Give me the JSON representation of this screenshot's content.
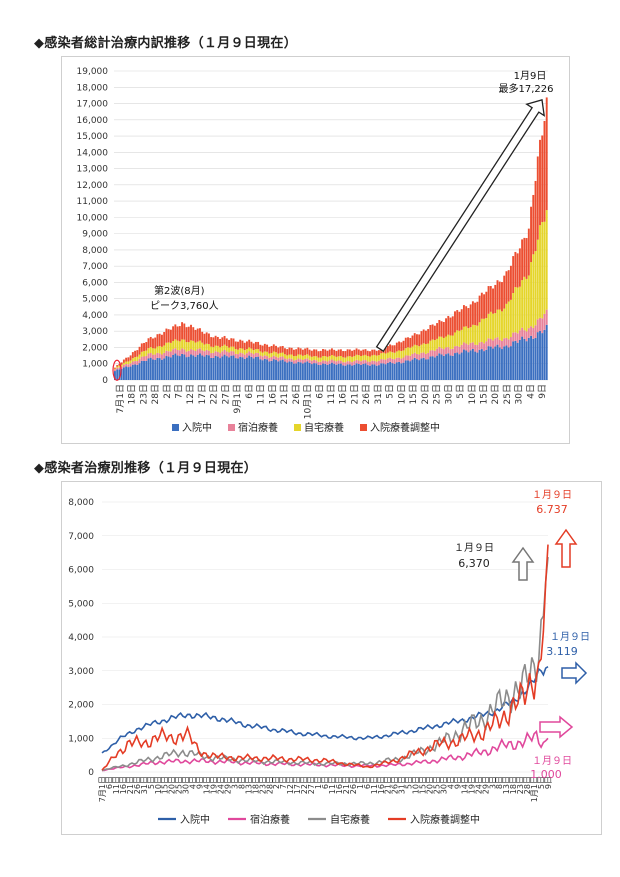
{
  "charts": [
    {
      "title": "◆感染者総計治療内訳推移（１月９日現在）",
      "chart_data": {
        "type": "bar",
        "stacked": true,
        "ylim": [
          0,
          19000
        ],
        "yticks": [
          "0",
          "1,000",
          "2,000",
          "3,000",
          "4,000",
          "5,000",
          "6,000",
          "7,000",
          "8,000",
          "9,000",
          "10,000",
          "11,000",
          "12,000",
          "13,000",
          "14,000",
          "15,000",
          "16,000",
          "17,000",
          "18,000",
          "19,000"
        ],
        "x_start": "7月1日",
        "x_end": "1月9日",
        "xtick_labels": [
          "7月1日",
          "18日",
          "23日",
          "28日",
          "2日",
          "7日",
          "12日",
          "17日",
          "22日",
          "27日",
          "9月1日",
          "6日",
          "11日",
          "16日",
          "21日",
          "26日",
          "10月1日",
          "6日",
          "11日",
          "16日",
          "21日",
          "26日",
          "31日",
          "5日",
          "10日",
          "15日",
          "20日",
          "25日",
          "30日",
          "5日",
          "10日",
          "15日",
          "20日",
          "25日",
          "30日",
          "4日",
          "9日"
        ],
        "series": [
          {
            "name": "入院中",
            "color": "#3b6fc0",
            "keyframes": [
              [
                0,
                550
              ],
              [
                15,
                1250
              ],
              [
                30,
                1550
              ],
              [
                45,
                1450
              ],
              [
                60,
                1400
              ],
              [
                75,
                1150
              ],
              [
                90,
                1000
              ],
              [
                105,
                950
              ],
              [
                118,
                950
              ],
              [
                130,
                1150
              ],
              [
                145,
                1500
              ],
              [
                160,
                1800
              ],
              [
                175,
                2100
              ],
              [
                185,
                2600
              ],
              [
                193,
                3100
              ]
            ]
          },
          {
            "name": "宿泊療養",
            "color": "#e8829a",
            "keyframes": [
              [
                0,
                100
              ],
              [
                15,
                300
              ],
              [
                30,
                350
              ],
              [
                45,
                300
              ],
              [
                60,
                250
              ],
              [
                75,
                200
              ],
              [
                90,
                200
              ],
              [
                105,
                200
              ],
              [
                118,
                250
              ],
              [
                130,
                300
              ],
              [
                145,
                400
              ],
              [
                160,
                450
              ],
              [
                175,
                500
              ],
              [
                185,
                600
              ],
              [
                193,
                950
              ]
            ]
          },
          {
            "name": "自宅療養",
            "color": "#e5d52a",
            "keyframes": [
              [
                0,
                50
              ],
              [
                15,
                350
              ],
              [
                30,
                600
              ],
              [
                45,
                350
              ],
              [
                60,
                250
              ],
              [
                75,
                250
              ],
              [
                90,
                250
              ],
              [
                105,
                300
              ],
              [
                118,
                350
              ],
              [
                130,
                450
              ],
              [
                145,
                650
              ],
              [
                160,
                1100
              ],
              [
                175,
                2000
              ],
              [
                185,
                3500
              ],
              [
                193,
                6370
              ]
            ]
          },
          {
            "name": "入院療養調整中",
            "color": "#ec4e31",
            "keyframes": [
              [
                0,
                50
              ],
              [
                15,
                600
              ],
              [
                30,
                1000
              ],
              [
                45,
                550
              ],
              [
                60,
                450
              ],
              [
                75,
                400
              ],
              [
                90,
                400
              ],
              [
                105,
                400
              ],
              [
                118,
                300
              ],
              [
                130,
                600
              ],
              [
                145,
                1000
              ],
              [
                160,
                1400
              ],
              [
                175,
                1900
              ],
              [
                185,
                2700
              ],
              [
                193,
                6800
              ]
            ]
          }
        ],
        "annotations": [
          {
            "text": "1月9日",
            "text2": "最多17,226"
          },
          {
            "text": "第2波(8月)",
            "text2": "ピーク3,760人"
          }
        ]
      }
    },
    {
      "title": "◆感染者治療別推移（１月９日現在）",
      "chart_data": {
        "type": "line",
        "ylim": [
          0,
          8000
        ],
        "yticks": [
          "0",
          "1,000",
          "2,000",
          "3,000",
          "4,000",
          "5,000",
          "6,000",
          "7,000",
          "8,000"
        ],
        "xtick_labels": [
          "7月1日",
          "6日",
          "11日",
          "16日",
          "21日",
          "26日",
          "31日",
          "5日",
          "10日",
          "15日",
          "20日",
          "25日",
          "30日",
          "4日",
          "9日",
          "14日",
          "19日",
          "24日",
          "29日",
          "3日",
          "8日",
          "13日",
          "18日",
          "23日",
          "28日",
          "2日",
          "7日",
          "12日",
          "17日",
          "22日",
          "27日",
          "1日",
          "6日",
          "11日",
          "16日",
          "21日",
          "26日",
          "1日",
          "6日",
          "11日",
          "16日",
          "21日",
          "26日",
          "31日",
          "5日",
          "10日",
          "15日",
          "20日",
          "25日",
          "30日",
          "4日",
          "9日",
          "14日",
          "19日",
          "24日",
          "29日",
          "3日",
          "8日",
          "13日",
          "18日",
          "23日",
          "28日",
          "1月1日",
          "5日",
          "9日"
        ],
        "series": [
          {
            "name": "入院中",
            "color": "#2e5fa8",
            "keyframes": [
              [
                0,
                550
              ],
              [
                8,
                1000
              ],
              [
                16,
                1300
              ],
              [
                30,
                1600
              ],
              [
                38,
                1700
              ],
              [
                50,
                1600
              ],
              [
                62,
                1400
              ],
              [
                75,
                1250
              ],
              [
                85,
                1150
              ],
              [
                100,
                1050
              ],
              [
                115,
                1000
              ],
              [
                125,
                1100
              ],
              [
                140,
                1300
              ],
              [
                150,
                1450
              ],
              [
                160,
                1600
              ],
              [
                170,
                1800
              ],
              [
                178,
                2100
              ],
              [
                186,
                2600
              ],
              [
                190,
                3000
              ],
              [
                193,
                3119
              ]
            ]
          },
          {
            "name": "宿泊療養",
            "color": "#e0489c",
            "keyframes": [
              [
                0,
                50
              ],
              [
                10,
                150
              ],
              [
                25,
                300
              ],
              [
                40,
                330
              ],
              [
                55,
                300
              ],
              [
                70,
                250
              ],
              [
                90,
                220
              ],
              [
                110,
                180
              ],
              [
                125,
                200
              ],
              [
                140,
                300
              ],
              [
                155,
                450
              ],
              [
                165,
                600
              ],
              [
                175,
                800
              ],
              [
                183,
                900
              ],
              [
                188,
                1050
              ],
              [
                191,
                850
              ],
              [
                193,
                1000
              ]
            ]
          },
          {
            "name": "自宅療養",
            "color": "#8c8c8c",
            "keyframes": [
              [
                0,
                50
              ],
              [
                10,
                200
              ],
              [
                25,
                450
              ],
              [
                35,
                600
              ],
              [
                45,
                450
              ],
              [
                60,
                350
              ],
              [
                75,
                300
              ],
              [
                95,
                250
              ],
              [
                115,
                250
              ],
              [
                130,
                400
              ],
              [
                145,
                800
              ],
              [
                155,
                1200
              ],
              [
                165,
                1600
              ],
              [
                172,
                2000
              ],
              [
                178,
                2400
              ],
              [
                183,
                2600
              ],
              [
                187,
                3100
              ],
              [
                190,
                4200
              ],
              [
                193,
                6370
              ]
            ]
          },
          {
            "name": "入院療養調整中",
            "color": "#e43c25",
            "keyframes": [
              [
                0,
                50
              ],
              [
                6,
                500
              ],
              [
                12,
                900
              ],
              [
                18,
                800
              ],
              [
                24,
                1100
              ],
              [
                30,
                950
              ],
              [
                36,
                1200
              ],
              [
                42,
                600
              ],
              [
                50,
                450
              ],
              [
                60,
                420
              ],
              [
                75,
                400
              ],
              [
                95,
                350
              ],
              [
                115,
                150
              ],
              [
                125,
                300
              ],
              [
                135,
                550
              ],
              [
                145,
                800
              ],
              [
                155,
                950
              ],
              [
                165,
                1200
              ],
              [
                172,
                1500
              ],
              [
                178,
                2000
              ],
              [
                183,
                2200
              ],
              [
                186,
                2800
              ],
              [
                189,
                3000
              ],
              [
                191,
                4500
              ],
              [
                193,
                6737
              ]
            ]
          }
        ],
        "annotations": [
          {
            "text": "１月９日",
            "text2": "6.737",
            "color": "#e43c25"
          },
          {
            "text": "１月９日",
            "text2": "6,370",
            "color": "#222222"
          },
          {
            "text": "１月９日",
            "text2": "3.119",
            "color": "#2e5fa8"
          },
          {
            "text": "１月９日",
            "text2": "1.000",
            "color": "#e0489c"
          }
        ]
      }
    }
  ]
}
